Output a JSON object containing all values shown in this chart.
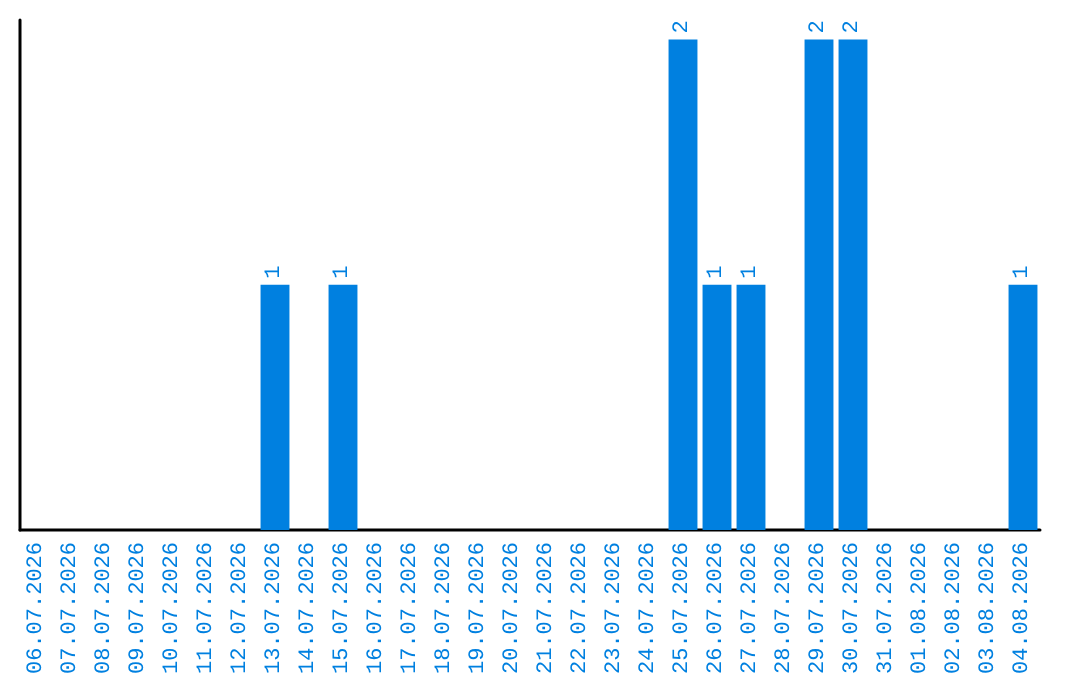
{
  "chart_data": {
    "type": "bar",
    "categories": [
      "06.07.2026",
      "07.07.2026",
      "08.07.2026",
      "09.07.2026",
      "10.07.2026",
      "11.07.2026",
      "12.07.2026",
      "13.07.2026",
      "14.07.2026",
      "15.07.2026",
      "16.07.2026",
      "17.07.2026",
      "18.07.2026",
      "19.07.2026",
      "20.07.2026",
      "21.07.2026",
      "22.07.2026",
      "23.07.2026",
      "24.07.2026",
      "25.07.2026",
      "26.07.2026",
      "27.07.2026",
      "28.07.2026",
      "29.07.2026",
      "30.07.2026",
      "31.07.2026",
      "01.08.2026",
      "02.08.2026",
      "03.08.2026",
      "04.08.2026"
    ],
    "values": [
      0,
      0,
      0,
      0,
      0,
      0,
      0,
      1,
      0,
      1,
      0,
      0,
      0,
      0,
      0,
      0,
      0,
      0,
      0,
      2,
      1,
      1,
      0,
      2,
      2,
      0,
      0,
      0,
      0,
      1
    ],
    "value_labels": [
      null,
      null,
      null,
      null,
      null,
      null,
      null,
      "1",
      null,
      "1",
      null,
      null,
      null,
      null,
      null,
      null,
      null,
      null,
      null,
      "2",
      "1",
      "1",
      null,
      "2",
      "2",
      null,
      null,
      null,
      null,
      "1"
    ],
    "color": "#0080e0",
    "grid": false,
    "tick_labels": "x"
  }
}
